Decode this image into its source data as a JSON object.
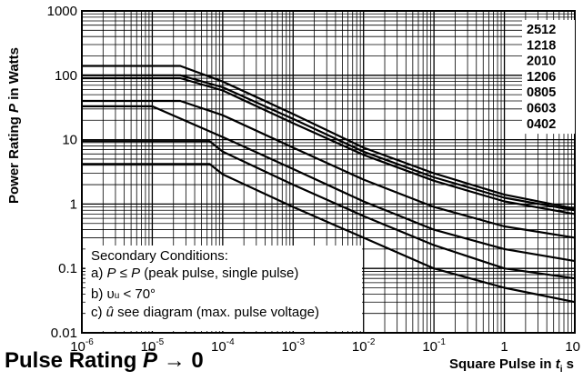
{
  "chart_data": {
    "type": "line",
    "title": "Pulse Rating",
    "title_symbol": "P̄",
    "title_suffix": "→ 0",
    "xlabel": "Square Pulse in",
    "xlabel_symbol": "t",
    "xlabel_sub": "i",
    "xlabel_unit": "s",
    "ylabel": "Power Rating",
    "ylabel_symbol": "P",
    "ylabel_unit": "in Watts",
    "x_scale": "log",
    "y_scale": "log",
    "xlim": [
      1e-06,
      10
    ],
    "ylim": [
      0.01,
      1000
    ],
    "x_ticks": [
      {
        "value": 1e-06,
        "base": "10",
        "exp": "-6"
      },
      {
        "value": 1e-05,
        "base": "10",
        "exp": "-5"
      },
      {
        "value": 0.0001,
        "base": "10",
        "exp": "-4"
      },
      {
        "value": 0.001,
        "base": "10",
        "exp": "-3"
      },
      {
        "value": 0.01,
        "base": "10",
        "exp": "-2"
      },
      {
        "value": 0.1,
        "base": "10",
        "exp": "-1"
      },
      {
        "value": 1,
        "base": "1",
        "exp": ""
      },
      {
        "value": 10,
        "base": "10",
        "exp": ""
      }
    ],
    "y_ticks": [
      {
        "value": 0.01,
        "label": "0.01"
      },
      {
        "value": 0.1,
        "label": "0.1"
      },
      {
        "value": 1,
        "label": "1"
      },
      {
        "value": 10,
        "label": "10"
      },
      {
        "value": 100,
        "label": "100"
      },
      {
        "value": 1000,
        "label": "1000"
      }
    ],
    "grid": true,
    "legend_position": "top-right",
    "legend": [
      "2512",
      "1218",
      "2010",
      "1206",
      "0805",
      "0603",
      "0402"
    ],
    "series": [
      {
        "x": [
          1e-06,
          2.5e-05,
          0.0001,
          0.001,
          0.01,
          0.1,
          1,
          10
        ],
        "y": [
          140,
          140,
          80,
          25,
          7.5,
          3,
          1.4,
          0.85
        ]
      },
      {
        "x": [
          1e-06,
          2.5e-05,
          0.0001,
          0.001,
          0.01,
          0.1,
          1,
          10
        ],
        "y": [
          100,
          100,
          65,
          21,
          6.5,
          2.6,
          1.25,
          0.8
        ]
      },
      {
        "x": [
          1e-06,
          2.5e-05,
          0.0001,
          0.001,
          0.01,
          0.1,
          1,
          10
        ],
        "y": [
          90,
          90,
          58,
          18,
          5.8,
          2.3,
          1.1,
          0.7
        ]
      },
      {
        "x": [
          1e-06,
          2.5e-05,
          0.0001,
          0.001,
          0.01,
          0.1,
          1,
          10
        ],
        "y": [
          40,
          40,
          24,
          7.5,
          2.4,
          0.9,
          0.45,
          0.3
        ]
      },
      {
        "x": [
          1e-06,
          1e-05,
          0.0001,
          0.001,
          0.01,
          0.1,
          1,
          10
        ],
        "y": [
          33,
          33,
          11,
          3.5,
          1.1,
          0.4,
          0.2,
          0.13
        ]
      },
      {
        "x": [
          1e-06,
          6.5e-05,
          0.0001,
          0.001,
          0.01,
          0.1,
          1,
          10
        ],
        "y": [
          9.5,
          9.5,
          6.5,
          2.0,
          0.65,
          0.23,
          0.1,
          0.07
        ]
      },
      {
        "x": [
          1e-06,
          6.5e-05,
          0.0001,
          0.001,
          0.01,
          0.1,
          1,
          10
        ],
        "y": [
          4.2,
          4.2,
          2.9,
          0.9,
          0.3,
          0.1,
          0.05,
          0.03
        ]
      }
    ],
    "annotation": {
      "heading": "Secondary Conditions:",
      "lines": [
        {
          "prefix": "a) ",
          "sym1": "P",
          "mid": " ≤ ",
          "sym2": "P",
          "suffix": " (peak pulse, single pulse)"
        },
        {
          "prefix": "b) ",
          "sym1": "υ",
          "sub": "u",
          "suffix": " < 70°"
        },
        {
          "prefix": "c) ",
          "sym1": "û",
          "suffix": " see diagram (max. pulse voltage)"
        }
      ]
    }
  }
}
